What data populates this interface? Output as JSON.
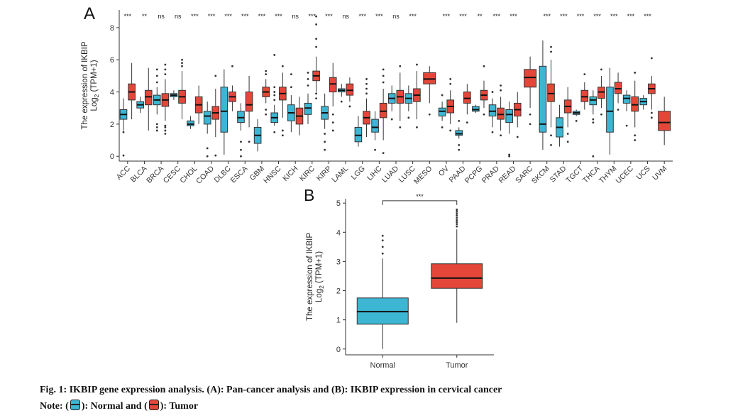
{
  "figure": {
    "caption": "Fig. 1: IKBIP gene expression analysis. (A): Pan-cancer analysis and (B): IKBIP expression in cervical cancer",
    "note_prefix": "Note: (",
    "note_mid": "): Normal and (",
    "note_end": "): Tumor"
  },
  "colors": {
    "normal": "#3db6d4",
    "tumor": "#e4473a",
    "axis": "#333333"
  },
  "chart_data": [
    {
      "type": "boxplot",
      "panel_label": "A",
      "ylabel_line1": "The expression of IKBIP",
      "ylabel_line2_prefix": "Log",
      "ylabel_line2_sub": "2",
      "ylabel_line2_suffix": " (TPM+1)",
      "ylim": [
        -0.3,
        9.1
      ],
      "yticks": [
        0,
        2,
        4,
        6,
        8
      ],
      "groups": [
        "Normal",
        "Tumor"
      ],
      "categories": [
        {
          "name": "ACC",
          "sig": "***",
          "normal": {
            "whisker_low": 1.6,
            "q1": 2.3,
            "median": 2.6,
            "q3": 2.9,
            "whisker_high": 3.6,
            "outliers": [
              0.05,
              1.5
            ]
          },
          "tumor": {
            "whisker_low": 2.3,
            "q1": 3.5,
            "median": 4.0,
            "q3": 4.5,
            "whisker_high": 5.8,
            "outliers": []
          }
        },
        {
          "name": "BLCA",
          "sig": "**",
          "normal": {
            "whisker_low": 2.7,
            "q1": 3.0,
            "median": 3.2,
            "q3": 3.4,
            "whisker_high": 3.7,
            "outliers": []
          },
          "tumor": {
            "whisker_low": 1.6,
            "q1": 3.2,
            "median": 3.7,
            "q3": 4.1,
            "whisker_high": 5.5,
            "outliers": []
          }
        },
        {
          "name": "BRCA",
          "sig": "ns",
          "normal": {
            "whisker_low": 2.6,
            "q1": 3.2,
            "median": 3.5,
            "q3": 3.8,
            "whisker_high": 4.3,
            "outliers": [
              1.6,
              1.8,
              2.0,
              4.6,
              5.0,
              5.4
            ]
          },
          "tumor": {
            "whisker_low": 2.2,
            "q1": 3.1,
            "median": 3.5,
            "q3": 3.9,
            "whisker_high": 4.8,
            "outliers": [
              1.4,
              1.6,
              1.8,
              1.9,
              5.1,
              5.4,
              5.7
            ]
          }
        },
        {
          "name": "CESC",
          "sig": "ns",
          "normal": {
            "whisker_low": 3.5,
            "q1": 3.7,
            "median": 3.8,
            "q3": 3.9,
            "whisker_high": 4.1,
            "outliers": []
          },
          "tumor": {
            "whisker_low": 2.3,
            "q1": 3.3,
            "median": 3.7,
            "q3": 4.1,
            "whisker_high": 5.3,
            "outliers": [
              5.6,
              5.8,
              6.0
            ]
          }
        },
        {
          "name": "CHOL",
          "sig": "***",
          "normal": {
            "whisker_low": 1.7,
            "q1": 1.9,
            "median": 2.0,
            "q3": 2.2,
            "whisker_high": 2.5,
            "outliers": []
          },
          "tumor": {
            "whisker_low": 2.0,
            "q1": 2.7,
            "median": 3.2,
            "q3": 3.7,
            "whisker_high": 4.4,
            "outliers": []
          }
        },
        {
          "name": "COAD",
          "sig": "***",
          "normal": {
            "whisker_low": 1.4,
            "q1": 2.0,
            "median": 2.5,
            "q3": 2.8,
            "whisker_high": 3.4,
            "outliers": [
              0.0,
              0.5
            ]
          },
          "tumor": {
            "whisker_low": 1.2,
            "q1": 2.3,
            "median": 2.7,
            "q3": 3.1,
            "whisker_high": 4.2,
            "outliers": [
              0.05,
              5.0
            ]
          }
        },
        {
          "name": "DLBC",
          "sig": "***",
          "normal": {
            "whisker_low": 0.1,
            "q1": 1.5,
            "median": 2.8,
            "q3": 4.3,
            "whisker_high": 5.4,
            "outliers": []
          },
          "tumor": {
            "whisker_low": 2.8,
            "q1": 3.4,
            "median": 3.7,
            "q3": 4.0,
            "whisker_high": 4.4,
            "outliers": [
              5.6
            ]
          }
        },
        {
          "name": "ESCA",
          "sig": "***",
          "normal": {
            "whisker_low": 1.6,
            "q1": 2.1,
            "median": 2.4,
            "q3": 2.8,
            "whisker_high": 3.3,
            "outliers": [
              0.0,
              0.4,
              0.9
            ]
          },
          "tumor": {
            "whisker_low": 1.8,
            "q1": 2.8,
            "median": 3.2,
            "q3": 4.0,
            "whisker_high": 5.0,
            "outliers": [
              0.9
            ]
          }
        },
        {
          "name": "GBM",
          "sig": "***",
          "normal": {
            "whisker_low": 0.3,
            "q1": 0.8,
            "median": 1.3,
            "q3": 1.8,
            "whisker_high": 2.3,
            "outliers": []
          },
          "tumor": {
            "whisker_low": 3.3,
            "q1": 3.7,
            "median": 4.0,
            "q3": 4.3,
            "whisker_high": 4.8,
            "outliers": [
              2.6,
              2.9,
              5.1,
              5.3
            ]
          }
        },
        {
          "name": "HNSC",
          "sig": "***",
          "normal": {
            "whisker_low": 1.9,
            "q1": 2.1,
            "median": 2.4,
            "q3": 2.7,
            "whisker_high": 3.2,
            "outliers": [
              1.5,
              3.5,
              3.8,
              4.0,
              4.3,
              6.3
            ]
          },
          "tumor": {
            "whisker_low": 2.4,
            "q1": 3.5,
            "median": 3.9,
            "q3": 4.3,
            "whisker_high": 5.2,
            "outliers": [
              1.3,
              1.6,
              5.6
            ]
          }
        },
        {
          "name": "KICH",
          "sig": "ns",
          "normal": {
            "whisker_low": 1.5,
            "q1": 2.2,
            "median": 2.7,
            "q3": 3.2,
            "whisker_high": 3.8,
            "outliers": [
              4.3,
              5.1
            ]
          },
          "tumor": {
            "whisker_low": 1.3,
            "q1": 2.0,
            "median": 2.5,
            "q3": 3.0,
            "whisker_high": 3.7,
            "outliers": []
          }
        },
        {
          "name": "KIRC",
          "sig": "***",
          "normal": {
            "whisker_low": 2.0,
            "q1": 2.6,
            "median": 3.0,
            "q3": 3.3,
            "whisker_high": 3.9,
            "outliers": [
              4.4,
              4.8,
              5.2
            ]
          },
          "tumor": {
            "whisker_low": 4.0,
            "q1": 4.7,
            "median": 5.0,
            "q3": 5.3,
            "whisker_high": 6.2,
            "outliers": [
              3.6,
              3.9,
              6.8,
              7.3,
              8.2,
              8.7
            ]
          }
        },
        {
          "name": "KIRP",
          "sig": "***",
          "normal": {
            "whisker_low": 1.7,
            "q1": 2.3,
            "median": 2.7,
            "q3": 3.1,
            "whisker_high": 3.9,
            "outliers": [
              0.4,
              0.9,
              1.4
            ]
          },
          "tumor": {
            "whisker_low": 3.1,
            "q1": 4.0,
            "median": 4.5,
            "q3": 4.9,
            "whisker_high": 5.8,
            "outliers": [
              1.6,
              2.1,
              2.6
            ]
          }
        },
        {
          "name": "LAML",
          "sig": "ns",
          "normal": {
            "whisker_low": 3.7,
            "q1": 4.0,
            "median": 4.1,
            "q3": 4.2,
            "whisker_high": 4.5,
            "outliers": [
              3.4
            ]
          },
          "tumor": {
            "whisker_low": 3.4,
            "q1": 3.8,
            "median": 4.1,
            "q3": 4.5,
            "whisker_high": 4.9,
            "outliers": [
              3.1
            ]
          }
        },
        {
          "name": "LGG",
          "sig": "***",
          "normal": {
            "whisker_low": 0.6,
            "q1": 0.9,
            "median": 1.3,
            "q3": 1.8,
            "whisker_high": 2.5,
            "outliers": []
          },
          "tumor": {
            "whisker_low": 1.2,
            "q1": 2.0,
            "median": 2.4,
            "q3": 2.8,
            "whisker_high": 3.6,
            "outliers": [
              3.9,
              4.2,
              4.5,
              4.8
            ]
          }
        },
        {
          "name": "LIHC",
          "sig": "***",
          "normal": {
            "whisker_low": 1.0,
            "q1": 1.5,
            "median": 1.8,
            "q3": 2.3,
            "whisker_high": 2.8,
            "outliers": [
              0.4
            ]
          },
          "tumor": {
            "whisker_low": 1.0,
            "q1": 2.4,
            "median": 2.8,
            "q3": 3.3,
            "whisker_high": 4.2,
            "outliers": [
              0.2,
              4.6,
              5.0,
              5.4
            ]
          }
        },
        {
          "name": "LUAD",
          "sig": "ns",
          "normal": {
            "whisker_low": 2.8,
            "q1": 3.3,
            "median": 3.6,
            "q3": 3.9,
            "whisker_high": 4.4,
            "outliers": [
              2.3
            ]
          },
          "tumor": {
            "whisker_low": 2.2,
            "q1": 3.3,
            "median": 3.7,
            "q3": 4.1,
            "whisker_high": 5.2,
            "outliers": [
              1.8,
              5.6
            ]
          }
        },
        {
          "name": "LUSC",
          "sig": "***",
          "normal": {
            "whisker_low": 2.8,
            "q1": 3.3,
            "median": 3.6,
            "q3": 3.9,
            "whisker_high": 4.4,
            "outliers": [
              2.4
            ]
          },
          "tumor": {
            "whisker_low": 2.3,
            "q1": 3.4,
            "median": 3.8,
            "q3": 4.2,
            "whisker_high": 5.3,
            "outliers": [
              1.8,
              5.7
            ]
          }
        },
        {
          "name": "MESO",
          "sig": "",
          "tumor": {
            "whisker_low": 3.3,
            "q1": 4.5,
            "median": 4.8,
            "q3": 5.2,
            "whisker_high": 5.6,
            "outliers": [
              2.6
            ]
          }
        },
        {
          "name": "OV",
          "sig": "***",
          "normal": {
            "whisker_low": 2.2,
            "q1": 2.5,
            "median": 2.8,
            "q3": 3.0,
            "whisker_high": 3.4,
            "outliers": [
              1.8,
              3.8
            ]
          },
          "tumor": {
            "whisker_low": 2.0,
            "q1": 2.7,
            "median": 3.1,
            "q3": 3.5,
            "whisker_high": 4.1,
            "outliers": [
              1.6,
              4.5,
              4.8
            ]
          }
        },
        {
          "name": "PAAD",
          "sig": "***",
          "normal": {
            "whisker_low": 1.1,
            "q1": 1.3,
            "median": 1.4,
            "q3": 1.6,
            "whisker_high": 1.8,
            "outliers": [
              0.4,
              0.7,
              2.2
            ]
          },
          "tumor": {
            "whisker_low": 2.6,
            "q1": 3.3,
            "median": 3.6,
            "q3": 4.0,
            "whisker_high": 4.5,
            "outliers": [
              2.1
            ]
          }
        },
        {
          "name": "PCPG",
          "sig": "**",
          "normal": {
            "whisker_low": 2.7,
            "q1": 2.8,
            "median": 2.9,
            "q3": 3.1,
            "whisker_high": 3.2,
            "outliers": []
          },
          "tumor": {
            "whisker_low": 3.0,
            "q1": 3.5,
            "median": 3.8,
            "q3": 4.1,
            "whisker_high": 4.7,
            "outliers": [
              2.6,
              5.6
            ]
          }
        },
        {
          "name": "PRAD",
          "sig": "***",
          "normal": {
            "whisker_low": 1.8,
            "q1": 2.5,
            "median": 2.8,
            "q3": 3.2,
            "whisker_high": 3.6,
            "outliers": [
              1.5,
              4.0
            ]
          },
          "tumor": {
            "whisker_low": 1.6,
            "q1": 2.3,
            "median": 2.6,
            "q3": 3.0,
            "whisker_high": 3.7,
            "outliers": [
              1.3,
              4.1,
              4.4
            ]
          }
        },
        {
          "name": "READ",
          "sig": "***",
          "normal": {
            "whisker_low": 1.4,
            "q1": 2.1,
            "median": 2.6,
            "q3": 2.9,
            "whisker_high": 3.4,
            "outliers": [
              0.0,
              0.1
            ]
          },
          "tumor": {
            "whisker_low": 1.8,
            "q1": 2.5,
            "median": 2.9,
            "q3": 3.3,
            "whisker_high": 4.0,
            "outliers": [
              1.2
            ]
          }
        },
        {
          "name": "SARC",
          "sig": "",
          "tumor": {
            "whisker_low": 3.0,
            "q1": 4.3,
            "median": 4.9,
            "q3": 5.4,
            "whisker_high": 6.2,
            "outliers": [
              2.0,
              2.6
            ]
          }
        },
        {
          "name": "SKCM",
          "sig": "***",
          "normal": {
            "whisker_low": 0.4,
            "q1": 1.5,
            "median": 2.0,
            "q3": 5.6,
            "whisker_high": 7.2,
            "outliers": []
          },
          "tumor": {
            "whisker_low": 1.8,
            "q1": 3.4,
            "median": 3.9,
            "q3": 4.5,
            "whisker_high": 6.0,
            "outliers": [
              0.7,
              1.3,
              6.5,
              6.8
            ]
          }
        },
        {
          "name": "STAD",
          "sig": "***",
          "normal": {
            "whisker_low": 0.6,
            "q1": 1.2,
            "median": 1.8,
            "q3": 2.4,
            "whisker_high": 3.2,
            "outliers": []
          },
          "tumor": {
            "whisker_low": 1.8,
            "q1": 2.7,
            "median": 3.1,
            "q3": 3.5,
            "whisker_high": 4.3,
            "outliers": [
              0.9,
              1.4
            ]
          }
        },
        {
          "name": "TGCT",
          "sig": "***",
          "normal": {
            "whisker_low": 2.5,
            "q1": 2.6,
            "median": 2.7,
            "q3": 2.8,
            "whisker_high": 2.9,
            "outliers": [
              2.2
            ]
          },
          "tumor": {
            "whisker_low": 2.9,
            "q1": 3.4,
            "median": 3.7,
            "q3": 4.1,
            "whisker_high": 4.6,
            "outliers": [
              5.1
            ]
          }
        },
        {
          "name": "THCA",
          "sig": "***",
          "normal": {
            "whisker_low": 2.6,
            "q1": 3.2,
            "median": 3.5,
            "q3": 3.7,
            "whisker_high": 4.1,
            "outliers": [
              0.0,
              2.1,
              2.3
            ]
          },
          "tumor": {
            "whisker_low": 3.0,
            "q1": 3.6,
            "median": 4.0,
            "q3": 4.3,
            "whisker_high": 5.0,
            "outliers": [
              2.6,
              5.4
            ]
          }
        },
        {
          "name": "THYM",
          "sig": "***",
          "normal": {
            "whisker_low": 0.1,
            "q1": 1.5,
            "median": 2.8,
            "q3": 4.3,
            "whisker_high": 5.5,
            "outliers": []
          },
          "tumor": {
            "whisker_low": 3.3,
            "q1": 3.9,
            "median": 4.2,
            "q3": 4.6,
            "whisker_high": 5.2,
            "outliers": [
              2.9
            ]
          }
        },
        {
          "name": "UCEC",
          "sig": "***",
          "normal": {
            "whisker_low": 2.8,
            "q1": 3.3,
            "median": 3.6,
            "q3": 3.8,
            "whisker_high": 4.1,
            "outliers": [
              1.9
            ]
          },
          "tumor": {
            "whisker_low": 1.8,
            "q1": 2.8,
            "median": 3.2,
            "q3": 3.7,
            "whisker_high": 4.7,
            "outliers": [
              1.0,
              1.3,
              5.2
            ]
          }
        },
        {
          "name": "UCS",
          "sig": "***",
          "normal": {
            "whisker_low": 2.9,
            "q1": 3.2,
            "median": 3.4,
            "q3": 3.6,
            "whisker_high": 3.8,
            "outliers": []
          },
          "tumor": {
            "whisker_low": 2.9,
            "q1": 3.9,
            "median": 4.2,
            "q3": 4.5,
            "whisker_high": 5.0,
            "outliers": [
              2.4,
              2.7,
              6.1
            ]
          }
        },
        {
          "name": "UVM",
          "sig": "",
          "tumor": {
            "whisker_low": 0.7,
            "q1": 1.6,
            "median": 2.1,
            "q3": 2.8,
            "whisker_high": 3.7,
            "outliers": []
          }
        }
      ]
    },
    {
      "type": "boxplot",
      "panel_label": "B",
      "ylabel_line1": "The expression of IKBIP",
      "ylabel_line2_prefix": "Log",
      "ylabel_line2_sub": "2",
      "ylabel_line2_suffix": " (TPM+1)",
      "ylim": [
        -0.2,
        5.15
      ],
      "yticks": [
        0,
        1,
        2,
        3,
        4,
        5
      ],
      "significance": "***",
      "categories": [
        {
          "name": "Normal",
          "group": "normal",
          "whisker_low": 0.0,
          "q1": 0.85,
          "median": 1.28,
          "q3": 1.75,
          "whisker_high": 3.1,
          "outliers": [
            3.27,
            3.5,
            3.72,
            3.88
          ]
        },
        {
          "name": "Tumor",
          "group": "tumor",
          "whisker_low": 0.9,
          "q1": 2.08,
          "median": 2.43,
          "q3": 2.92,
          "whisker_high": 4.1,
          "outliers": [
            4.2,
            4.28,
            4.35,
            4.42,
            4.5,
            4.58,
            4.65,
            4.72,
            4.78
          ]
        }
      ]
    }
  ]
}
